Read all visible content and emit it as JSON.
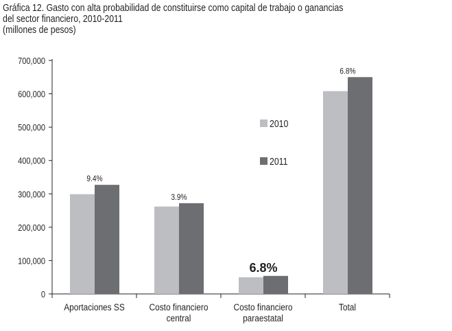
{
  "chart_data": {
    "type": "bar",
    "title_lines": [
      "Gráfica 12. Gasto con alta probabilidad de constituirse como capital de trabajo o ganancias",
      "del sector financiero, 2010-2011",
      "(millones de pesos)"
    ],
    "categories": [
      [
        "Aportaciones SS"
      ],
      [
        "Costo financiero",
        "central"
      ],
      [
        "Costo financiero",
        "paraestatal"
      ],
      [
        "Total"
      ]
    ],
    "series": [
      {
        "name": "2010",
        "color": "#bdbec2",
        "values": [
          299000,
          262000,
          50000,
          608000
        ]
      },
      {
        "name": "2011",
        "color": "#6d6e71",
        "values": [
          327000,
          272000,
          54000,
          650000
        ]
      }
    ],
    "annotations": [
      "9.4%",
      "3.9%",
      "6.8%",
      "6.8%"
    ],
    "ylim": [
      0,
      700000
    ],
    "yticks": [
      "0",
      "100,000",
      "200,000",
      "300,000",
      "400,000",
      "500,000",
      "600,000",
      "700,000"
    ],
    "legend_position": "center"
  }
}
